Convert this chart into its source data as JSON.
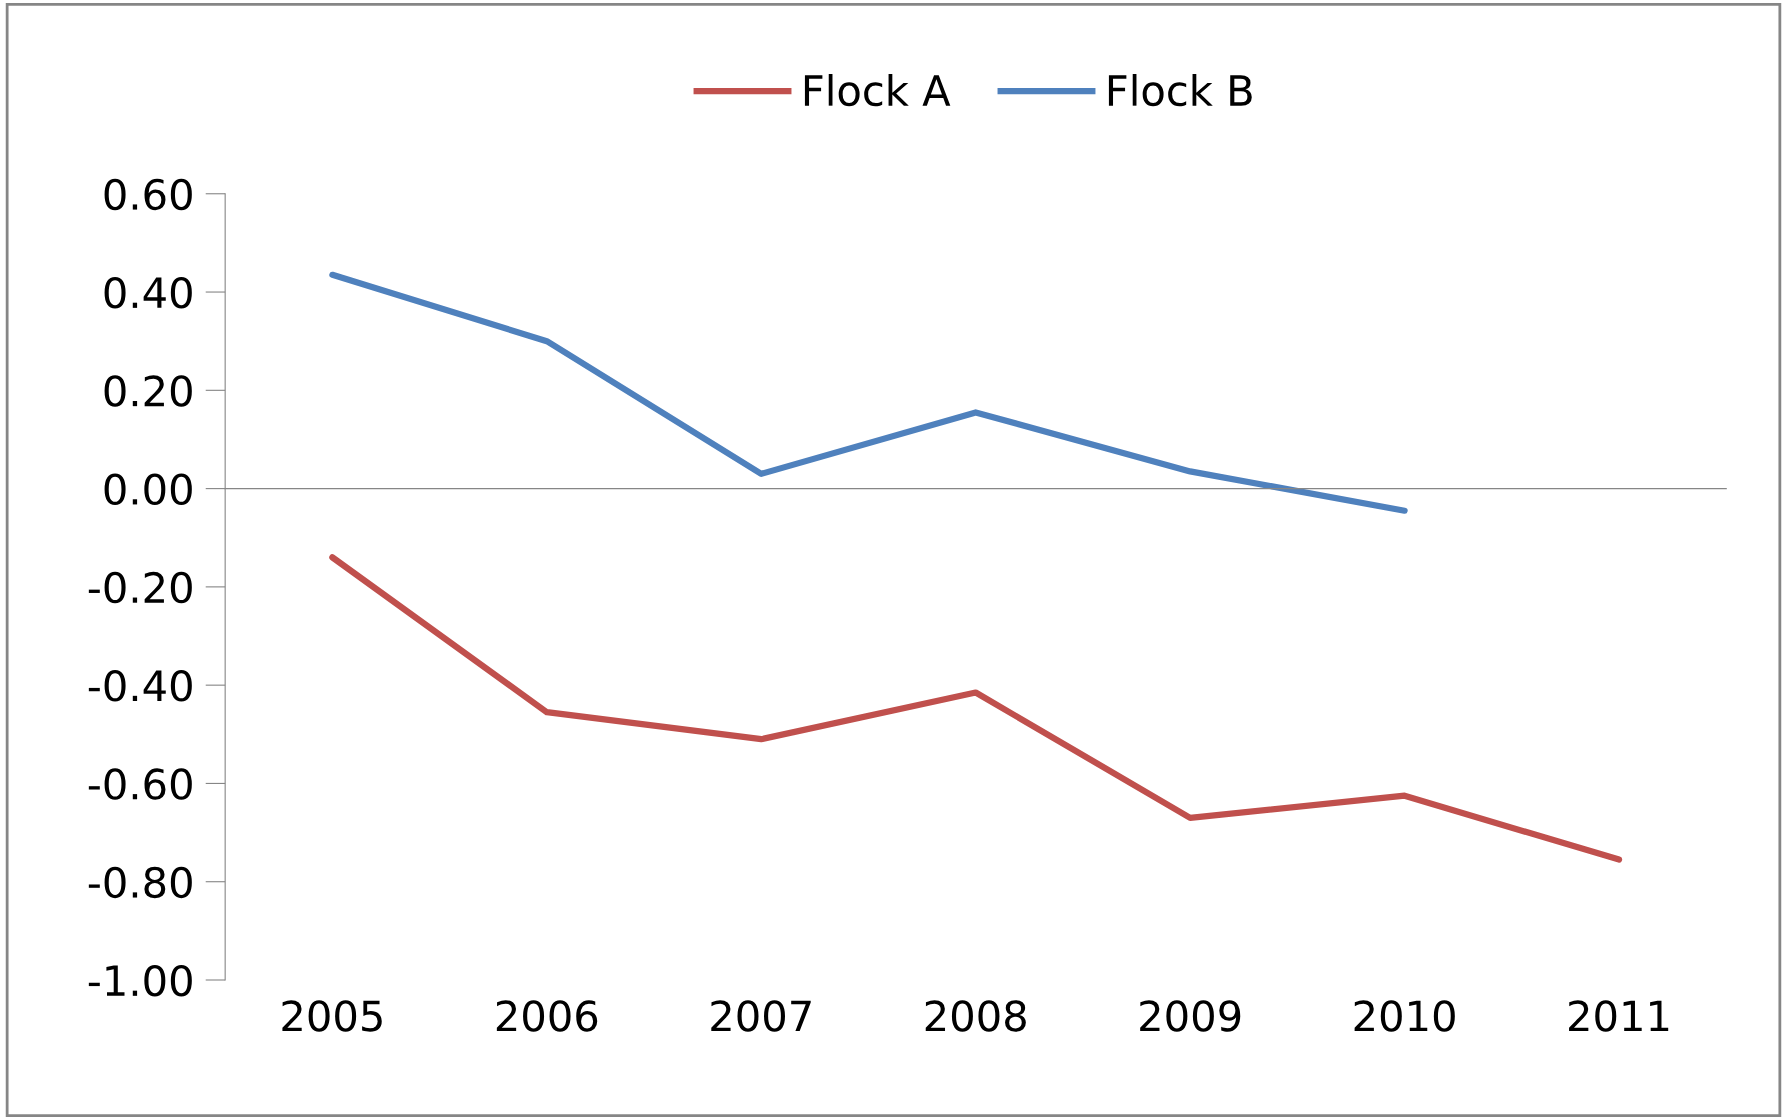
{
  "chart_data": {
    "type": "line",
    "categories": [
      "2005",
      "2006",
      "2007",
      "2008",
      "2009",
      "2010",
      "2011"
    ],
    "series": [
      {
        "name": "Flock A",
        "color": "#c0504d",
        "values": [
          -0.14,
          -0.455,
          -0.51,
          -0.415,
          -0.67,
          -0.625,
          -0.755
        ]
      },
      {
        "name": "Flock B",
        "color": "#4f81bd",
        "values": [
          0.435,
          0.3,
          0.03,
          0.155,
          0.035,
          -0.045,
          null
        ]
      }
    ],
    "ylim": [
      -1.0,
      0.6
    ],
    "yticks": [
      {
        "value": 0.6,
        "label": "0.60"
      },
      {
        "value": 0.4,
        "label": "0.40"
      },
      {
        "value": 0.2,
        "label": "0.20"
      },
      {
        "value": 0.0,
        "label": "0.00"
      },
      {
        "value": -0.2,
        "label": "-0.20"
      },
      {
        "value": -0.4,
        "label": "-0.40"
      },
      {
        "value": -0.6,
        "label": "-0.60"
      },
      {
        "value": -0.8,
        "label": "-0.80"
      },
      {
        "value": -1.0,
        "label": "-1.00"
      }
    ],
    "legend": "top",
    "marker": "none",
    "line_style": "solid"
  }
}
